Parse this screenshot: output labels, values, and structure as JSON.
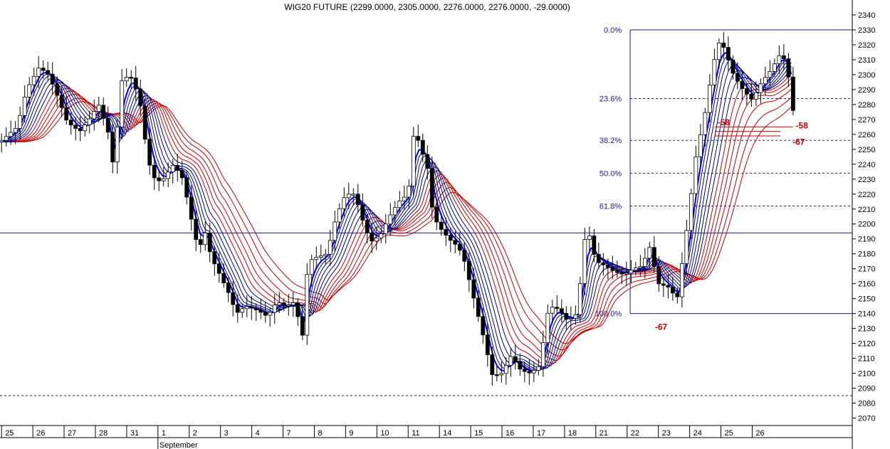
{
  "chart_data": {
    "type": "candlestick",
    "title": "WIG20 FUTURE (2299.0000, 2305.0000, 2276.0000, 2276.0000, -29.0000)",
    "ylim": [
      2065,
      2350
    ],
    "y_ticks": [
      2070,
      2080,
      2090,
      2100,
      2110,
      2120,
      2130,
      2140,
      2150,
      2160,
      2170,
      2180,
      2190,
      2200,
      2210,
      2220,
      2230,
      2240,
      2250,
      2260,
      2270,
      2280,
      2290,
      2300,
      2310,
      2320,
      2330,
      2340
    ],
    "x_range": [
      -0.55,
      26.7
    ],
    "x_ticks": [
      "25",
      "26",
      "27",
      "28",
      "31",
      "1",
      "2",
      "3",
      "4",
      "7",
      "8",
      "9",
      "10",
      "11",
      "14",
      "15",
      "16",
      "17",
      "18",
      "21",
      "22",
      "23",
      "24",
      "25",
      "26"
    ],
    "x_tick_sub": {
      "index": 5,
      "label": "September"
    },
    "fibonacci": {
      "high": 2330,
      "low": 2140,
      "x_start": 19.6,
      "levels": [
        {
          "label": "0.0%",
          "value": 2330
        },
        {
          "label": "23.6%",
          "value": 2284
        },
        {
          "label": "38.2%",
          "value": 2256
        },
        {
          "label": "50.0%",
          "value": 2234
        },
        {
          "label": "61.8%",
          "value": 2212
        },
        {
          "label": "100.0%",
          "value": 2140
        }
      ]
    },
    "horizontal_lines": [
      2194,
      2085
    ],
    "annotations": [
      {
        "text": "-58",
        "x": 24.8,
        "y": 2266
      },
      {
        "text": "-58",
        "x": 22.3,
        "y": 2268
      },
      {
        "text": "-67",
        "x": 24.7,
        "y": 2255
      },
      {
        "text": "-67",
        "x": 20.3,
        "y": 2131
      }
    ],
    "close_path": [
      [
        -0.55,
        2255
      ],
      [
        0,
        2265
      ],
      [
        0.3,
        2290
      ],
      [
        0.7,
        2305
      ],
      [
        1,
        2300
      ],
      [
        1.3,
        2285
      ],
      [
        1.6,
        2268
      ],
      [
        2,
        2262
      ],
      [
        2.3,
        2270
      ],
      [
        2.6,
        2280
      ],
      [
        2.9,
        2262
      ],
      [
        3.1,
        2235
      ],
      [
        3.3,
        2295
      ],
      [
        3.6,
        2300
      ],
      [
        3.9,
        2285
      ],
      [
        4.1,
        2255
      ],
      [
        4.3,
        2232
      ],
      [
        4.6,
        2228
      ],
      [
        5,
        2240
      ],
      [
        5.3,
        2230
      ],
      [
        5.6,
        2200
      ],
      [
        5.8,
        2182
      ],
      [
        6,
        2195
      ],
      [
        6.2,
        2178
      ],
      [
        6.5,
        2165
      ],
      [
        6.8,
        2152
      ],
      [
        7,
        2140
      ],
      [
        7.3,
        2145
      ],
      [
        7.7,
        2142
      ],
      [
        8,
        2138
      ],
      [
        8.3,
        2148
      ],
      [
        8.6,
        2145
      ],
      [
        8.9,
        2148
      ],
      [
        9.1,
        2120
      ],
      [
        9.3,
        2175
      ],
      [
        9.6,
        2178
      ],
      [
        9.9,
        2180
      ],
      [
        10.2,
        2205
      ],
      [
        10.5,
        2220
      ],
      [
        10.8,
        2220
      ],
      [
        11,
        2205
      ],
      [
        11.3,
        2188
      ],
      [
        11.6,
        2192
      ],
      [
        11.9,
        2205
      ],
      [
        12.2,
        2215
      ],
      [
        12.5,
        2220
      ],
      [
        12.7,
        2265
      ],
      [
        12.9,
        2250
      ],
      [
        13.1,
        2240
      ],
      [
        13.3,
        2205
      ],
      [
        13.6,
        2195
      ],
      [
        13.9,
        2188
      ],
      [
        14.1,
        2185
      ],
      [
        14.3,
        2175
      ],
      [
        14.6,
        2150
      ],
      [
        14.9,
        2125
      ],
      [
        15.2,
        2098
      ],
      [
        15.5,
        2100
      ],
      [
        15.8,
        2112
      ],
      [
        16.1,
        2102
      ],
      [
        16.4,
        2100
      ],
      [
        16.7,
        2105
      ],
      [
        17,
        2145
      ],
      [
        17.3,
        2143
      ],
      [
        17.6,
        2135
      ],
      [
        17.9,
        2140
      ],
      [
        18.2,
        2200
      ],
      [
        18.5,
        2175
      ],
      [
        18.8,
        2172
      ],
      [
        19.1,
        2168
      ],
      [
        19.4,
        2166
      ],
      [
        19.7,
        2170
      ],
      [
        20,
        2172
      ],
      [
        20.2,
        2186
      ],
      [
        20.5,
        2160
      ],
      [
        20.8,
        2158
      ],
      [
        21.1,
        2150
      ],
      [
        21.4,
        2195
      ],
      [
        21.7,
        2245
      ],
      [
        22,
        2275
      ],
      [
        22.2,
        2300
      ],
      [
        22.4,
        2322
      ],
      [
        22.6,
        2318
      ],
      [
        22.9,
        2300
      ],
      [
        23.2,
        2290
      ],
      [
        23.5,
        2283
      ],
      [
        23.8,
        2295
      ],
      [
        24.1,
        2303
      ],
      [
        24.4,
        2314
      ],
      [
        24.6,
        2308
      ],
      [
        24.8,
        2276
      ]
    ],
    "blue_averages": [
      {
        "lag": 0.25,
        "damp": 0.82
      },
      {
        "lag": 0.45,
        "damp": 0.72
      },
      {
        "lag": 0.65,
        "damp": 0.62
      },
      {
        "lag": 0.85,
        "damp": 0.52
      },
      {
        "lag": 1.05,
        "damp": 0.44
      }
    ],
    "red_averages": [
      {
        "lag": 1.3,
        "damp": 0.38
      },
      {
        "lag": 1.55,
        "damp": 0.33
      },
      {
        "lag": 1.8,
        "damp": 0.29
      },
      {
        "lag": 2.05,
        "damp": 0.25
      },
      {
        "lag": 2.3,
        "damp": 0.21
      },
      {
        "lag": 2.55,
        "damp": 0.18
      }
    ]
  }
}
